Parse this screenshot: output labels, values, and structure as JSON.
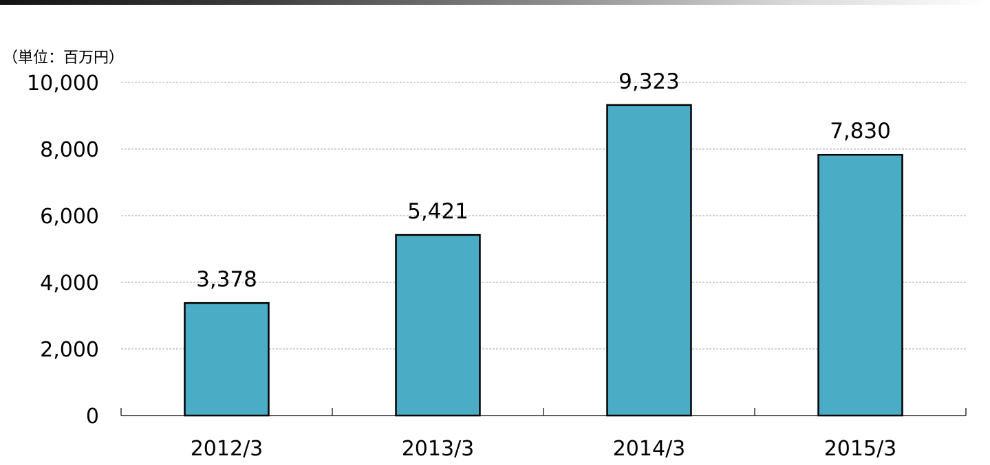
{
  "chart_data": {
    "type": "bar",
    "unit_label": "（単位：百万円）",
    "categories": [
      "2012/3",
      "2013/3",
      "2014/3",
      "2015/3"
    ],
    "values": [
      3378,
      5421,
      9323,
      7830
    ],
    "data_labels": [
      "3,378",
      "5,421",
      "9,323",
      "7,830"
    ],
    "y_ticks": [
      0,
      2000,
      4000,
      6000,
      8000,
      10000
    ],
    "y_tick_labels": [
      "0",
      "2,000",
      "4,000",
      "6,000",
      "8,000",
      "10,000"
    ],
    "ylim": [
      0,
      10000
    ],
    "grid": true,
    "bar_color": "#4bacc6",
    "top_bar_gradient": [
      "#141414",
      "#ffffff"
    ]
  }
}
